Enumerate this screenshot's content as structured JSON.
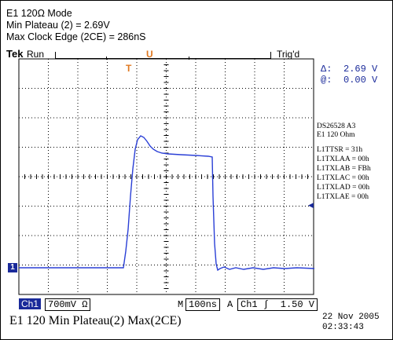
{
  "header": {
    "line1": "E1 120Ω Mode",
    "line2": "Min Plateau (2) = 2.69V",
    "line3": "Max Clock Edge (2CE) = 286nS"
  },
  "status": {
    "brand": "Tek",
    "run_state": "Run",
    "trigger_state": "Trig'd",
    "trigger_marker": "T",
    "trigger_marker_top": "U"
  },
  "measurements": {
    "delta_label": "Δ:",
    "delta_value": "2.69 V",
    "at_label": "@:",
    "at_value": "0.00 V"
  },
  "annotations": {
    "device": "DS26528  A3",
    "mode": "E1 120 Ohm",
    "registers": [
      "L1TTSR = 31h",
      "L1TXLAA = 00h",
      "L1TXLAB = FBh",
      "L1TXLAC = 00h",
      "L1TXLAD = 00h",
      "L1TXLAE = 00h"
    ]
  },
  "bottom_bar": {
    "channel": "Ch1",
    "volts_per_div": "700mV Ω",
    "time_prefix": "M",
    "time_per_div": "100ns",
    "trigger_prefix": "A",
    "trigger_channel": "Ch1",
    "trigger_slope": "∫",
    "trigger_level": "1.50 V"
  },
  "caption": "E1 120 Min Plateau(2)  Max(2CE)",
  "timestamp": {
    "date": "22 Nov 2005",
    "time": "02:33:43"
  },
  "ground_marker": "1",
  "colors": {
    "trace": "#2a3fd6",
    "accent": "#e07820",
    "panel": "#1a2a9a"
  }
}
